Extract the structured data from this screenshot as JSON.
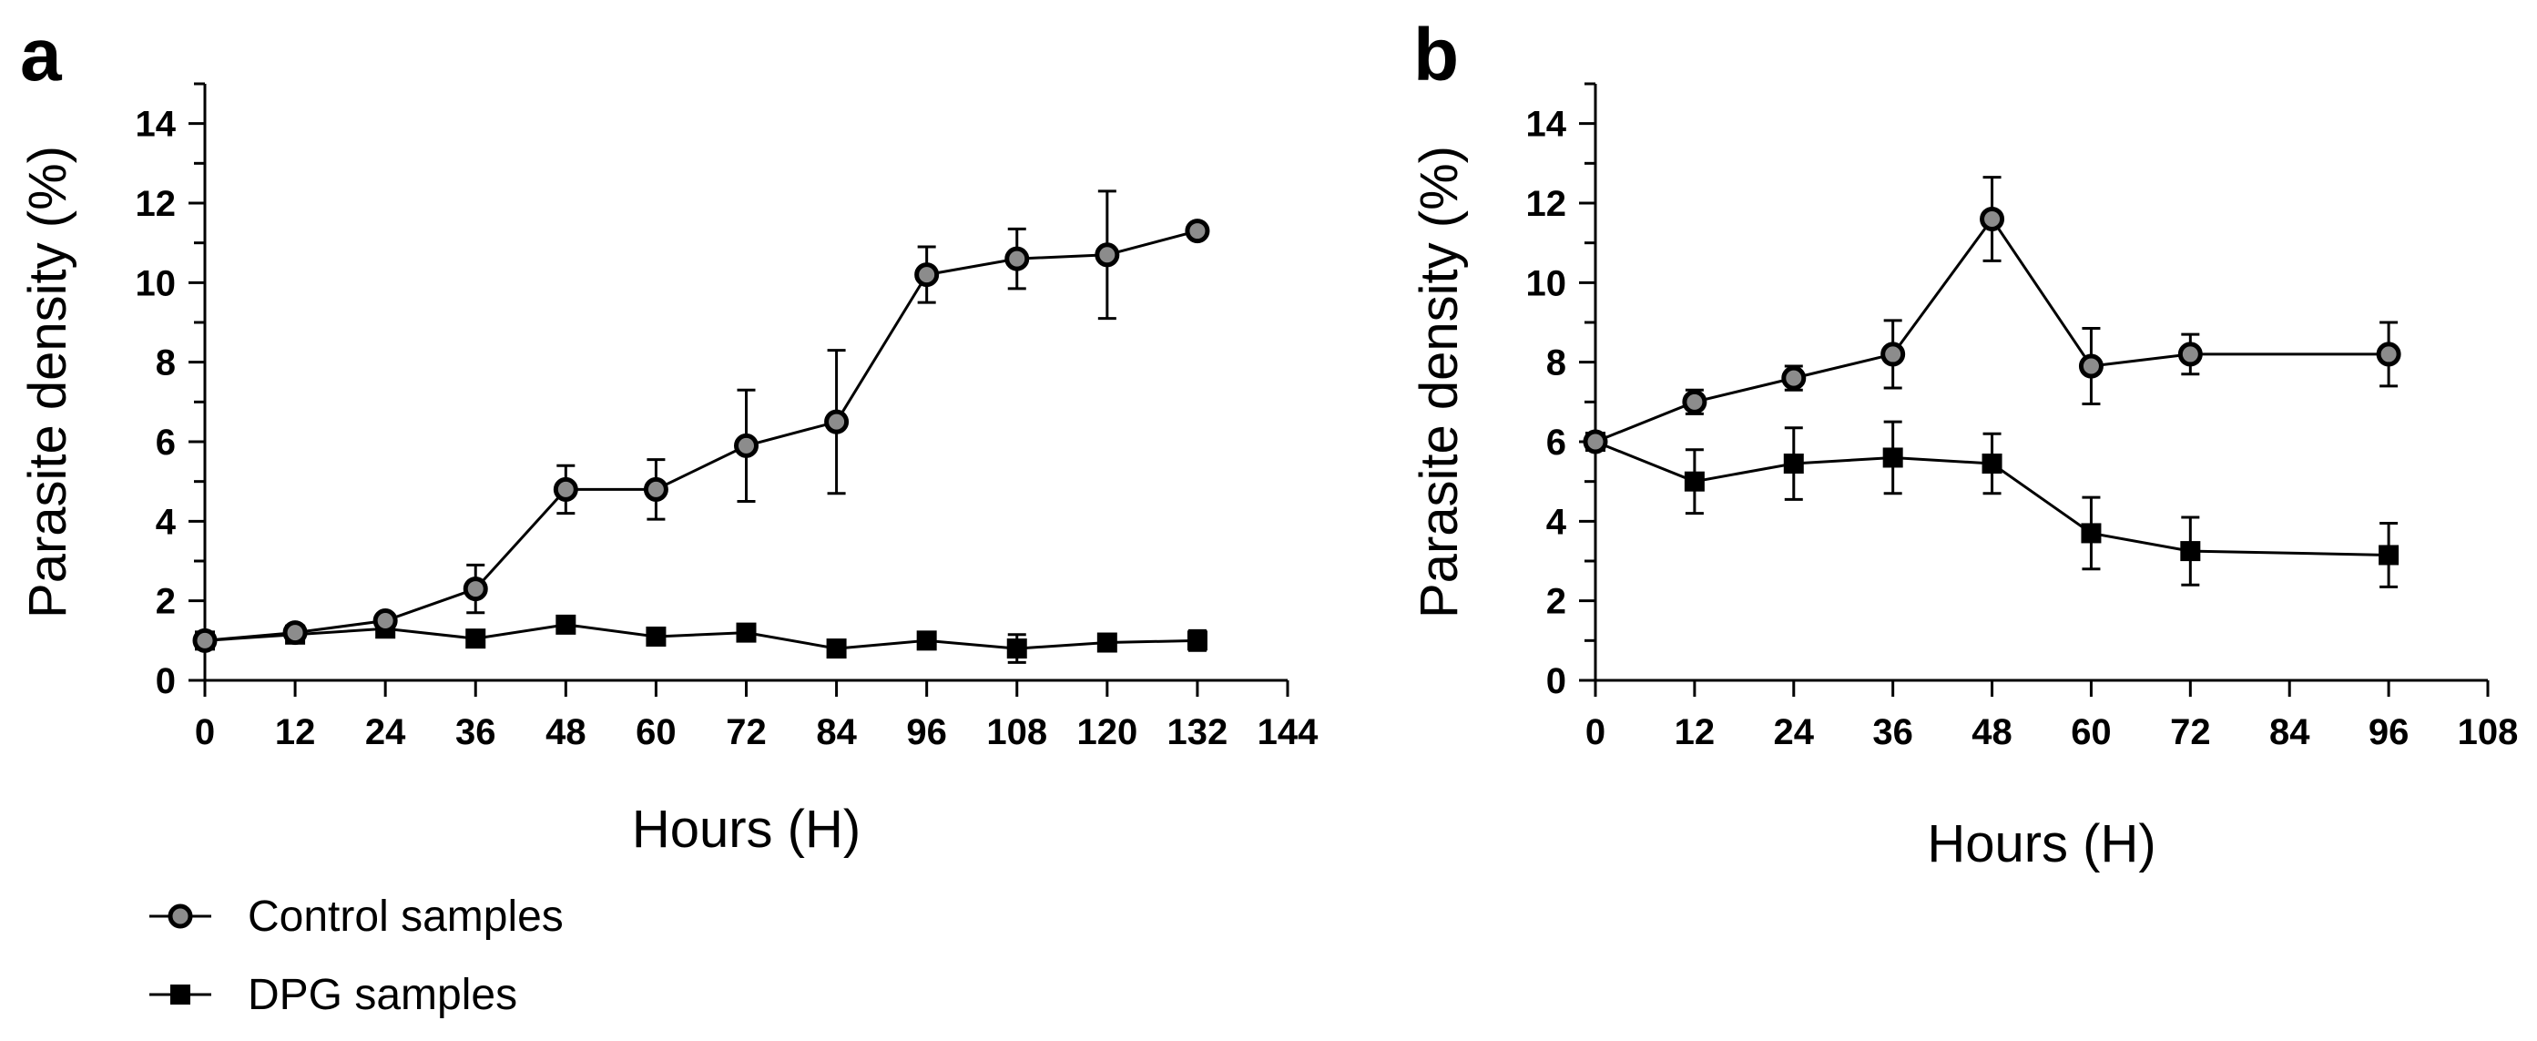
{
  "chart_data": [
    {
      "type": "line",
      "panel_label": "a",
      "xlabel": "Hours (H)",
      "ylabel": "Parasite density (%)",
      "xlim": [
        0,
        144
      ],
      "ylim": [
        0,
        15
      ],
      "xticks": [
        0,
        12,
        24,
        36,
        48,
        60,
        72,
        84,
        96,
        108,
        120,
        132,
        144
      ],
      "yticks": [
        0,
        2,
        4,
        6,
        8,
        10,
        12,
        14
      ],
      "series": [
        {
          "name": "Control samples",
          "marker": "circle",
          "x": [
            0,
            12,
            24,
            36,
            48,
            60,
            72,
            84,
            96,
            108,
            120,
            132
          ],
          "values": [
            1.0,
            1.2,
            1.5,
            2.3,
            4.8,
            4.8,
            5.9,
            6.5,
            10.2,
            10.6,
            10.7,
            11.3
          ],
          "errors": [
            0.1,
            0.1,
            0.15,
            0.6,
            0.6,
            0.75,
            1.4,
            1.8,
            0.7,
            0.75,
            1.6,
            0.1
          ]
        },
        {
          "name": "DPG samples",
          "marker": "square",
          "x": [
            0,
            12,
            24,
            36,
            48,
            60,
            72,
            84,
            96,
            108,
            120,
            132
          ],
          "values": [
            1.0,
            1.15,
            1.3,
            1.05,
            1.4,
            1.1,
            1.2,
            0.8,
            1.0,
            0.8,
            0.95,
            1.0
          ],
          "errors": [
            0.05,
            0.1,
            0.1,
            0.1,
            0.1,
            0.1,
            0.1,
            0.1,
            0.1,
            0.35,
            0.1,
            0.25
          ]
        }
      ]
    },
    {
      "type": "line",
      "panel_label": "b",
      "xlabel": "Hours (H)",
      "ylabel": "Parasite density (%)",
      "xlim": [
        0,
        108
      ],
      "ylim": [
        0,
        15
      ],
      "xticks": [
        0,
        12,
        24,
        36,
        48,
        60,
        72,
        84,
        96,
        108
      ],
      "yticks": [
        0,
        2,
        4,
        6,
        8,
        10,
        12,
        14
      ],
      "series": [
        {
          "name": "Control samples",
          "marker": "circle",
          "x": [
            0,
            12,
            24,
            36,
            48,
            60,
            72,
            96
          ],
          "values": [
            6.0,
            7.0,
            7.6,
            8.2,
            11.6,
            7.9,
            8.2,
            8.2
          ],
          "errors": [
            0.1,
            0.3,
            0.3,
            0.85,
            1.05,
            0.95,
            0.5,
            0.8
          ]
        },
        {
          "name": "DPG samples",
          "marker": "square",
          "x": [
            0,
            12,
            24,
            36,
            48,
            60,
            72,
            96
          ],
          "values": [
            6.0,
            5.0,
            5.45,
            5.6,
            5.45,
            3.7,
            3.25,
            3.15
          ],
          "errors": [
            0.1,
            0.8,
            0.9,
            0.9,
            0.75,
            0.9,
            0.85,
            0.8
          ]
        }
      ]
    }
  ],
  "legend": {
    "control_label": "Control samples",
    "dpg_label": "DPG samples"
  },
  "colors": {
    "control_fill": "#8c8c8c",
    "stroke": "#000000",
    "dpg_fill": "#000000"
  }
}
